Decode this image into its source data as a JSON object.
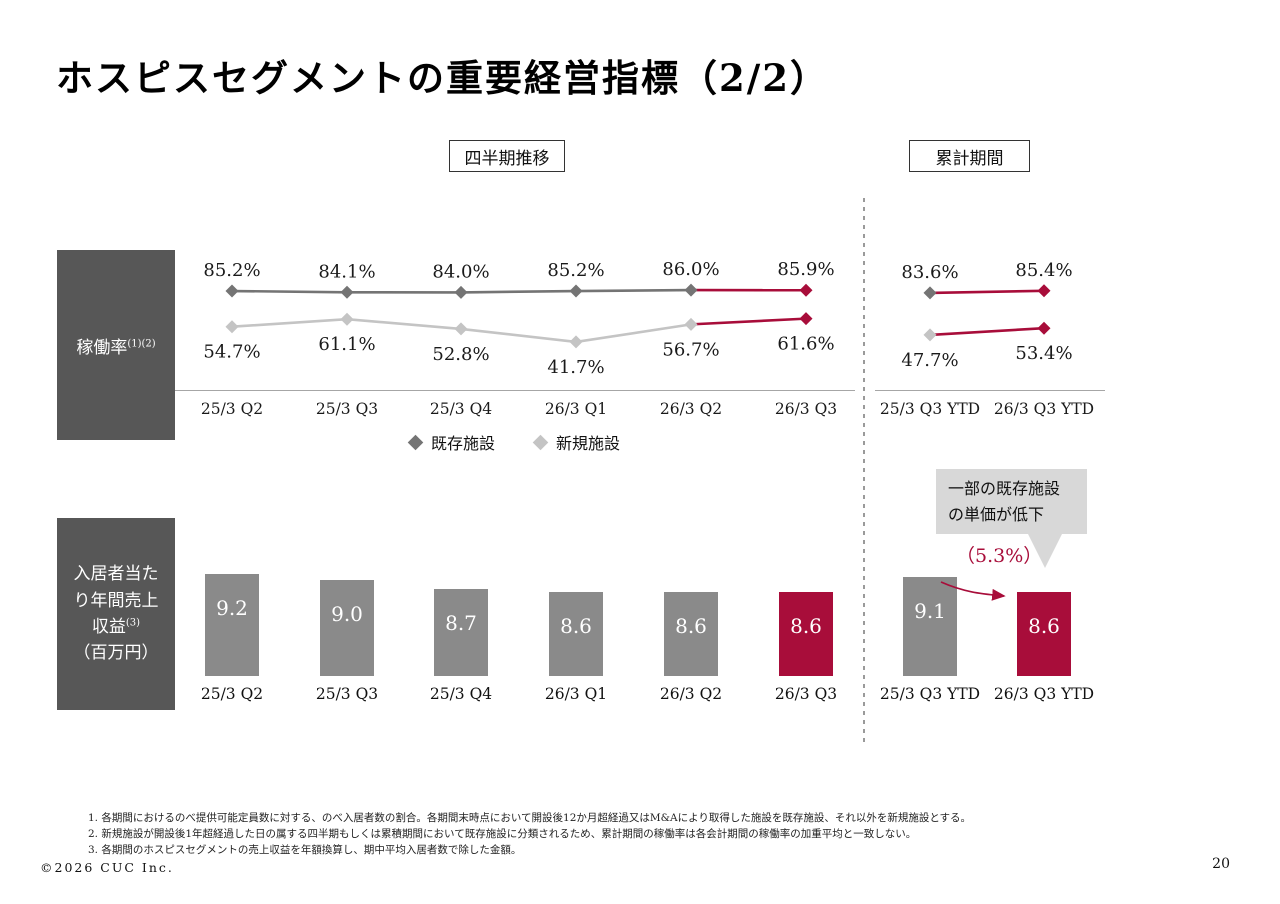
{
  "page": {
    "title": "ホスピスセグメントの重要経営指標（2/2）",
    "footer": "©2026 CUC Inc.",
    "page_number": "20"
  },
  "section_headers": {
    "quarterly": "四半期推移",
    "cumulative": "累計期間"
  },
  "colors": {
    "accent": "#A80D3A",
    "existing": "#747474",
    "new": "#C4C4C4",
    "bar_gray": "#8A8A8A",
    "label_box": "#575757",
    "callout_bg": "#D8D8D8",
    "axis": "#A6A6A6"
  },
  "occupancy": {
    "row_label": "稼働率",
    "row_label_sup": "(1)(2)"
  },
  "revenue": {
    "row_label_lines": [
      "入居者当た",
      "り年間売上",
      "収益",
      "（百万円）"
    ],
    "row_label_sup": "(3)"
  },
  "legend": {
    "existing": "既存施設",
    "new": "新規施設"
  },
  "callout": {
    "line1": "一部の既存施設",
    "line2": "の単価が低下",
    "value": "（5.3%）"
  },
  "footnotes": [
    "1. 各期間におけるのべ提供可能定員数に対する、のべ入居者数の割合。各期間末時点において開設後12か月超経過又はM&Aにより取得した施設を既存施設、それ以外を新規施設とする。",
    "2. 新規施設が開設後1年超経過した日の属する四半期もしくは累積期間において既存施設に分類されるため、累計期間の稼働率は各会計期間の稼働率の加重平均と一致しない。",
    "3. 各期間のホスピスセグメントの売上収益を年額換算し、期中平均入居者数で除した金額。"
  ],
  "chart_data": [
    {
      "type": "line",
      "name": "occupancy_rate",
      "title": "稼働率(1)(2)",
      "unit": "%",
      "categories": [
        "25/3 Q2",
        "25/3 Q3",
        "25/3 Q4",
        "26/3 Q1",
        "26/3 Q2",
        "26/3 Q3"
      ],
      "cumulative_categories": [
        "25/3 Q3 YTD",
        "26/3 Q3 YTD"
      ],
      "series": [
        {
          "name": "既存施設",
          "values": [
            85.2,
            84.1,
            84.0,
            85.2,
            86.0,
            85.9
          ],
          "cumulative_values": [
            83.6,
            85.4
          ]
        },
        {
          "name": "新規施設",
          "values": [
            54.7,
            61.1,
            52.8,
            41.7,
            56.7,
            61.6
          ],
          "cumulative_values": [
            47.7,
            53.4
          ]
        }
      ],
      "highlight_last_segment": true,
      "ylim": [
        30,
        95
      ],
      "grid": false,
      "legend_position": "bottom"
    },
    {
      "type": "bar",
      "name": "annual_revenue_per_resident",
      "title": "入居者当たり年間売上収益(3)（百万円）",
      "unit": "百万円",
      "categories": [
        "25/3 Q2",
        "25/3 Q3",
        "25/3 Q4",
        "26/3 Q1",
        "26/3 Q2",
        "26/3 Q3"
      ],
      "values": [
        9.2,
        9.0,
        8.7,
        8.6,
        8.6,
        8.6
      ],
      "cumulative_categories": [
        "25/3 Q3 YTD",
        "26/3 Q3 YTD"
      ],
      "cumulative_values": [
        9.1,
        8.6
      ],
      "highlight_quarterly": [
        5
      ],
      "highlight_cumulative": [
        1
      ],
      "grid": false
    }
  ]
}
